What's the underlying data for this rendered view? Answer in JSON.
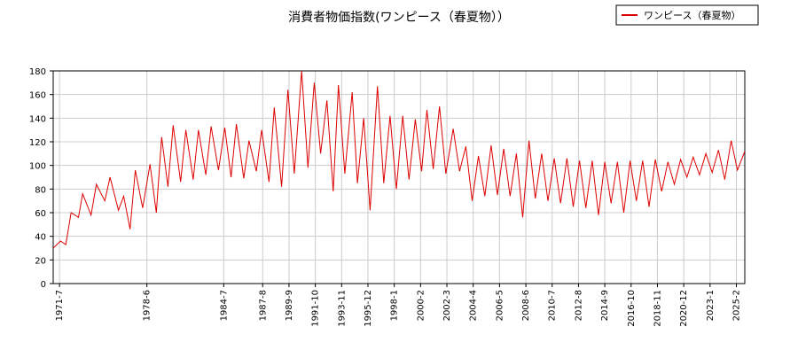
{
  "chart_data": {
    "type": "line",
    "title": "消費者物価指数(ワンピース（春夏物））",
    "xlabel": "",
    "ylabel": "",
    "ylim": [
      0,
      180
    ],
    "y_ticks": [
      0,
      20,
      40,
      60,
      80,
      100,
      120,
      140,
      160,
      180
    ],
    "x_range": [
      "1971-01",
      "2025-10"
    ],
    "x_ticks": [
      "1971-7",
      "1978-6",
      "1984-7",
      "1987-8",
      "1989-9",
      "1991-10",
      "1993-11",
      "1995-12",
      "1998-1",
      "2000-2",
      "2002-3",
      "2004-4",
      "2006-5",
      "2008-6",
      "2010-7",
      "2012-8",
      "2014-9",
      "2016-10",
      "2018-11",
      "2020-12",
      "2023-1",
      "2025-2"
    ],
    "grid": true,
    "legend": "top-right",
    "series": [
      {
        "name": "ワンピース（春夏物）",
        "color": "#dd0000",
        "points": [
          [
            "1971-01",
            30
          ],
          [
            "1971-08",
            36
          ],
          [
            "1972-01",
            33
          ],
          [
            "1972-06",
            60
          ],
          [
            "1973-01",
            56
          ],
          [
            "1973-05",
            76
          ],
          [
            "1974-01",
            58
          ],
          [
            "1974-06",
            84
          ],
          [
            "1975-02",
            70
          ],
          [
            "1975-07",
            90
          ],
          [
            "1976-03",
            62
          ],
          [
            "1976-08",
            74
          ],
          [
            "1977-02",
            46
          ],
          [
            "1977-07",
            96
          ],
          [
            "1978-02",
            64
          ],
          [
            "1978-09",
            101
          ],
          [
            "1979-03",
            60
          ],
          [
            "1979-08",
            124
          ],
          [
            "1980-02",
            82
          ],
          [
            "1980-07",
            134
          ],
          [
            "1981-02",
            86
          ],
          [
            "1981-07",
            130
          ],
          [
            "1982-02",
            88
          ],
          [
            "1982-07",
            130
          ],
          [
            "1983-02",
            92
          ],
          [
            "1983-07",
            133
          ],
          [
            "1984-02",
            96
          ],
          [
            "1984-08",
            132
          ],
          [
            "1985-02",
            90
          ],
          [
            "1985-07",
            135
          ],
          [
            "1986-02",
            89
          ],
          [
            "1986-07",
            121
          ],
          [
            "1987-02",
            95
          ],
          [
            "1987-07",
            130
          ],
          [
            "1988-02",
            86
          ],
          [
            "1988-07",
            149
          ],
          [
            "1989-02",
            82
          ],
          [
            "1989-08",
            164
          ],
          [
            "1990-02",
            93
          ],
          [
            "1990-09",
            180
          ],
          [
            "1991-03",
            98
          ],
          [
            "1991-09",
            170
          ],
          [
            "1992-03",
            110
          ],
          [
            "1992-09",
            155
          ],
          [
            "1993-03",
            78
          ],
          [
            "1993-08",
            168
          ],
          [
            "1994-02",
            93
          ],
          [
            "1994-09",
            162
          ],
          [
            "1995-02",
            85
          ],
          [
            "1995-08",
            140
          ],
          [
            "1996-02",
            62
          ],
          [
            "1996-09",
            167
          ],
          [
            "1997-03",
            85
          ],
          [
            "1997-09",
            142
          ],
          [
            "1998-03",
            80
          ],
          [
            "1998-09",
            142
          ],
          [
            "1999-03",
            88
          ],
          [
            "1999-09",
            139
          ],
          [
            "2000-03",
            95
          ],
          [
            "2000-08",
            147
          ],
          [
            "2001-02",
            97
          ],
          [
            "2001-08",
            150
          ],
          [
            "2002-02",
            93
          ],
          [
            "2002-09",
            131
          ],
          [
            "2003-03",
            95
          ],
          [
            "2003-09",
            116
          ],
          [
            "2004-03",
            70
          ],
          [
            "2004-09",
            108
          ],
          [
            "2005-03",
            74
          ],
          [
            "2005-09",
            117
          ],
          [
            "2006-03",
            75
          ],
          [
            "2006-09",
            114
          ],
          [
            "2007-03",
            74
          ],
          [
            "2007-09",
            110
          ],
          [
            "2008-03",
            56
          ],
          [
            "2008-09",
            121
          ],
          [
            "2009-03",
            72
          ],
          [
            "2009-09",
            110
          ],
          [
            "2010-03",
            70
          ],
          [
            "2010-09",
            106
          ],
          [
            "2011-03",
            68
          ],
          [
            "2011-09",
            106
          ],
          [
            "2012-03",
            65
          ],
          [
            "2012-09",
            104
          ],
          [
            "2013-03",
            64
          ],
          [
            "2013-09",
            104
          ],
          [
            "2014-03",
            58
          ],
          [
            "2014-09",
            103
          ],
          [
            "2015-03",
            68
          ],
          [
            "2015-09",
            103
          ],
          [
            "2016-03",
            60
          ],
          [
            "2016-09",
            104
          ],
          [
            "2017-03",
            70
          ],
          [
            "2017-09",
            104
          ],
          [
            "2018-03",
            65
          ],
          [
            "2018-09",
            105
          ],
          [
            "2019-03",
            78
          ],
          [
            "2019-09",
            103
          ],
          [
            "2020-03",
            84
          ],
          [
            "2020-09",
            105
          ],
          [
            "2021-03",
            90
          ],
          [
            "2021-09",
            107
          ],
          [
            "2022-03",
            92
          ],
          [
            "2022-09",
            110
          ],
          [
            "2023-03",
            94
          ],
          [
            "2023-09",
            113
          ],
          [
            "2024-03",
            88
          ],
          [
            "2024-09",
            121
          ],
          [
            "2025-03",
            96
          ],
          [
            "2025-10",
            112
          ]
        ]
      }
    ]
  }
}
